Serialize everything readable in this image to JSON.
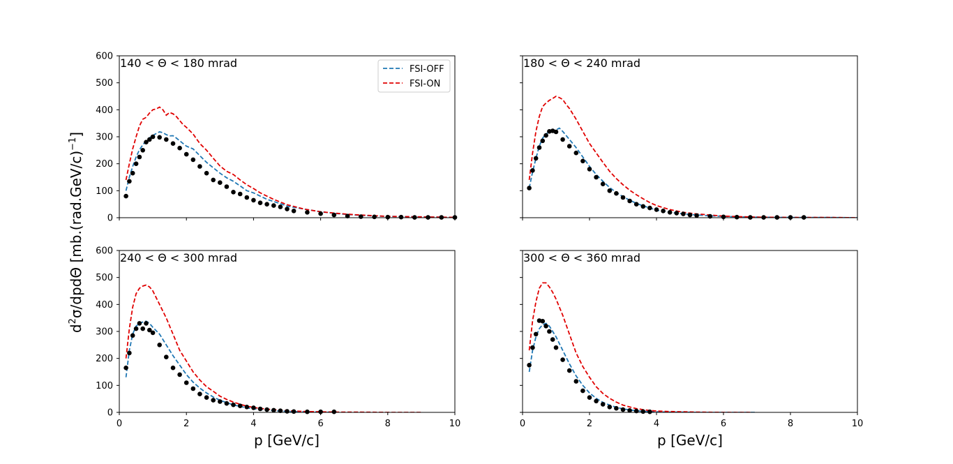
{
  "figure": {
    "xlabel": "p [GeV/c]",
    "ylabel_main": "d",
    "ylabel_sup": "2",
    "ylabel_rest": "σ/dpdΘ [mb.(rad.GeV/c)",
    "ylabel_exp": "−1",
    "ylabel_close": "]"
  },
  "legend": {
    "items": [
      {
        "label": "FSI-OFF",
        "color": "#1f77b4"
      },
      {
        "label": "FSI-ON",
        "color": "#e00000"
      }
    ]
  },
  "chart_data": [
    {
      "type": "line+scatter",
      "title": "140 < Θ < 180 mrad",
      "xlim": [
        0,
        10
      ],
      "ylim": [
        0,
        600
      ],
      "xticks": [
        0,
        2,
        4,
        6,
        8,
        10
      ],
      "yticks": [
        0,
        100,
        200,
        300,
        400,
        500,
        600
      ],
      "series": [
        {
          "name": "FSI-OFF",
          "color": "#1f77b4",
          "style": "dashed",
          "x": [
            0.2,
            0.3,
            0.4,
            0.5,
            0.6,
            0.7,
            0.8,
            0.9,
            1.0,
            1.1,
            1.2,
            1.3,
            1.4,
            1.5,
            1.6,
            1.7,
            1.8,
            1.9,
            2.0,
            2.2,
            2.4,
            2.6,
            2.8,
            3.0,
            3.2,
            3.4,
            3.6,
            3.8,
            4.0,
            4.2,
            4.4,
            4.6,
            4.8,
            5.0,
            5.5,
            6.0,
            6.5,
            7.0,
            7.5,
            8.0,
            8.5,
            9.0,
            9.5,
            10.0
          ],
          "y": [
            100,
            150,
            190,
            225,
            252,
            270,
            285,
            296,
            305,
            312,
            318,
            315,
            308,
            303,
            304,
            295,
            285,
            275,
            265,
            255,
            230,
            205,
            185,
            165,
            148,
            135,
            118,
            100,
            92,
            80,
            68,
            60,
            52,
            43,
            32,
            22,
            15,
            10,
            7,
            5,
            4,
            3,
            2,
            1
          ]
        },
        {
          "name": "FSI-ON",
          "color": "#e00000",
          "style": "dashed",
          "x": [
            0.2,
            0.3,
            0.4,
            0.5,
            0.6,
            0.7,
            0.8,
            0.9,
            1.0,
            1.1,
            1.2,
            1.3,
            1.4,
            1.5,
            1.6,
            1.7,
            1.8,
            1.9,
            2.0,
            2.2,
            2.4,
            2.6,
            2.8,
            3.0,
            3.2,
            3.4,
            3.6,
            3.8,
            4.0,
            4.2,
            4.4,
            4.6,
            4.8,
            5.0,
            5.5,
            6.0,
            6.5,
            7.0,
            7.5,
            8.0,
            8.5,
            9.0,
            9.5,
            10.0
          ],
          "y": [
            140,
            200,
            255,
            300,
            340,
            365,
            372,
            388,
            400,
            403,
            410,
            400,
            380,
            390,
            385,
            375,
            360,
            345,
            335,
            310,
            275,
            250,
            220,
            192,
            172,
            160,
            140,
            122,
            108,
            92,
            80,
            68,
            58,
            48,
            32,
            22,
            16,
            11,
            8,
            5,
            4,
            3,
            2,
            1
          ]
        },
        {
          "name": "data",
          "color": "#000000",
          "style": "points",
          "x": [
            0.2,
            0.3,
            0.4,
            0.5,
            0.6,
            0.7,
            0.8,
            0.9,
            1.0,
            1.2,
            1.4,
            1.6,
            1.8,
            2.0,
            2.2,
            2.4,
            2.6,
            2.8,
            3.0,
            3.2,
            3.4,
            3.6,
            3.8,
            4.0,
            4.2,
            4.4,
            4.6,
            4.8,
            5.0,
            5.2,
            5.6,
            6.0,
            6.4,
            6.8,
            7.2,
            7.6,
            8.0,
            8.4,
            8.8,
            9.2,
            9.6,
            10.0
          ],
          "y": [
            80,
            135,
            165,
            200,
            225,
            250,
            280,
            290,
            300,
            298,
            290,
            275,
            258,
            235,
            215,
            190,
            165,
            140,
            130,
            115,
            95,
            88,
            75,
            65,
            55,
            50,
            45,
            40,
            32,
            25,
            20,
            15,
            10,
            6,
            4,
            3,
            2,
            2,
            1,
            1,
            1,
            1
          ]
        }
      ]
    },
    {
      "type": "line+scatter",
      "title": "180 < Θ < 240 mrad",
      "xlim": [
        0,
        10
      ],
      "ylim": [
        0,
        600
      ],
      "xticks": [
        0,
        2,
        4,
        6,
        8,
        10
      ],
      "yticks": [
        0,
        100,
        200,
        300,
        400,
        500,
        600
      ],
      "series": [
        {
          "name": "FSI-OFF",
          "color": "#1f77b4",
          "style": "dashed",
          "x": [
            0.2,
            0.3,
            0.4,
            0.5,
            0.6,
            0.7,
            0.8,
            0.9,
            1.0,
            1.1,
            1.2,
            1.3,
            1.4,
            1.6,
            1.8,
            2.0,
            2.2,
            2.4,
            2.6,
            2.8,
            3.0,
            3.2,
            3.4,
            3.6,
            3.8,
            4.0,
            4.4,
            4.8,
            5.2,
            5.6,
            6.0,
            6.5,
            7.0,
            8.0,
            9.0,
            10.0
          ],
          "y": [
            110,
            170,
            220,
            265,
            295,
            310,
            318,
            322,
            325,
            332,
            320,
            305,
            290,
            260,
            225,
            190,
            160,
            135,
            112,
            93,
            78,
            65,
            53,
            44,
            36,
            28,
            20,
            14,
            10,
            7,
            5,
            3,
            2,
            1,
            1,
            0
          ]
        },
        {
          "name": "FSI-ON",
          "color": "#e00000",
          "style": "dashed",
          "x": [
            0.2,
            0.3,
            0.4,
            0.5,
            0.6,
            0.7,
            0.8,
            0.9,
            1.0,
            1.1,
            1.2,
            1.3,
            1.4,
            1.6,
            1.8,
            2.0,
            2.2,
            2.4,
            2.6,
            2.8,
            3.0,
            3.2,
            3.4,
            3.6,
            3.8,
            4.0,
            4.4,
            4.8,
            5.2,
            5.6,
            6.0,
            6.5,
            7.0,
            8.0,
            9.0,
            10.0
          ],
          "y": [
            140,
            240,
            320,
            375,
            412,
            425,
            435,
            442,
            450,
            445,
            438,
            420,
            405,
            365,
            320,
            275,
            240,
            205,
            172,
            145,
            122,
            102,
            85,
            70,
            56,
            45,
            30,
            20,
            14,
            10,
            6,
            4,
            2,
            1,
            1,
            0
          ]
        },
        {
          "name": "data",
          "color": "#000000",
          "style": "points",
          "x": [
            0.2,
            0.3,
            0.4,
            0.5,
            0.6,
            0.7,
            0.8,
            0.9,
            1.0,
            1.2,
            1.4,
            1.6,
            1.8,
            2.0,
            2.2,
            2.4,
            2.6,
            2.8,
            3.0,
            3.2,
            3.4,
            3.6,
            3.8,
            4.0,
            4.2,
            4.4,
            4.6,
            4.8,
            5.0,
            5.2,
            5.6,
            6.0,
            6.4,
            6.8,
            7.2,
            7.6,
            8.0,
            8.4
          ],
          "y": [
            110,
            175,
            220,
            260,
            285,
            305,
            320,
            322,
            318,
            290,
            265,
            240,
            210,
            180,
            150,
            125,
            100,
            90,
            75,
            62,
            50,
            42,
            36,
            30,
            25,
            20,
            17,
            14,
            10,
            8,
            5,
            3,
            2,
            1,
            1,
            1,
            1,
            1
          ]
        }
      ]
    },
    {
      "type": "line+scatter",
      "title": "240 < Θ < 300 mrad",
      "xlim": [
        0,
        10
      ],
      "ylim": [
        0,
        600
      ],
      "xticks": [
        0,
        2,
        4,
        6,
        8,
        10
      ],
      "yticks": [
        0,
        100,
        200,
        300,
        400,
        500,
        600
      ],
      "series": [
        {
          "name": "FSI-OFF",
          "color": "#1f77b4",
          "style": "dashed",
          "x": [
            0.2,
            0.3,
            0.4,
            0.5,
            0.6,
            0.7,
            0.8,
            0.9,
            1.0,
            1.2,
            1.4,
            1.6,
            1.8,
            2.0,
            2.2,
            2.4,
            2.6,
            2.8,
            3.0,
            3.2,
            3.4,
            3.6,
            3.8,
            4.0,
            4.4,
            4.8,
            5.2,
            5.6,
            6.0,
            6.4
          ],
          "y": [
            130,
            230,
            290,
            320,
            330,
            335,
            338,
            330,
            315,
            290,
            250,
            210,
            175,
            140,
            112,
            90,
            72,
            57,
            45,
            36,
            28,
            22,
            17,
            13,
            8,
            5,
            3,
            2,
            1,
            1
          ]
        },
        {
          "name": "FSI-ON",
          "color": "#e00000",
          "style": "dashed",
          "x": [
            0.2,
            0.3,
            0.4,
            0.5,
            0.6,
            0.7,
            0.8,
            0.9,
            1.0,
            1.2,
            1.4,
            1.6,
            1.8,
            2.0,
            2.2,
            2.4,
            2.6,
            2.8,
            3.0,
            3.2,
            3.4,
            3.6,
            3.8,
            4.0,
            4.4,
            4.8,
            5.2,
            5.6,
            6.0,
            6.5,
            7.0,
            8.0,
            9.0
          ],
          "y": [
            200,
            310,
            390,
            440,
            460,
            468,
            472,
            465,
            450,
            400,
            350,
            290,
            230,
            190,
            150,
            120,
            95,
            78,
            60,
            48,
            38,
            30,
            23,
            18,
            12,
            8,
            5,
            3,
            2,
            1,
            1,
            0,
            0
          ]
        },
        {
          "name": "data",
          "color": "#000000",
          "style": "points",
          "x": [
            0.2,
            0.3,
            0.4,
            0.5,
            0.6,
            0.7,
            0.8,
            0.9,
            1.0,
            1.2,
            1.4,
            1.6,
            1.8,
            2.0,
            2.2,
            2.4,
            2.6,
            2.8,
            3.0,
            3.2,
            3.4,
            3.6,
            3.8,
            4.0,
            4.2,
            4.4,
            4.6,
            4.8,
            5.0,
            5.2,
            5.6,
            6.0,
            6.4
          ],
          "y": [
            165,
            220,
            285,
            310,
            330,
            310,
            330,
            305,
            295,
            250,
            205,
            165,
            140,
            110,
            88,
            68,
            55,
            45,
            40,
            33,
            28,
            24,
            20,
            17,
            13,
            10,
            8,
            6,
            4,
            3,
            2,
            2,
            2
          ]
        }
      ]
    },
    {
      "type": "line+scatter",
      "title": "300 < Θ < 360 mrad",
      "xlim": [
        0,
        10
      ],
      "ylim": [
        0,
        600
      ],
      "xticks": [
        0,
        2,
        4,
        6,
        8,
        10
      ],
      "yticks": [
        0,
        100,
        200,
        300,
        400,
        500,
        600
      ],
      "series": [
        {
          "name": "FSI-OFF",
          "color": "#1f77b4",
          "style": "dashed",
          "x": [
            0.2,
            0.3,
            0.4,
            0.5,
            0.6,
            0.7,
            0.8,
            0.9,
            1.0,
            1.2,
            1.4,
            1.6,
            1.8,
            2.0,
            2.2,
            2.4,
            2.6,
            2.8,
            3.0,
            3.2,
            3.4,
            3.6,
            3.8,
            4.0,
            4.4,
            4.8,
            5.2,
            6.0,
            7.0
          ],
          "y": [
            150,
            230,
            280,
            310,
            325,
            330,
            320,
            300,
            280,
            230,
            180,
            135,
            100,
            72,
            52,
            37,
            27,
            19,
            13,
            9,
            6,
            4,
            3,
            2,
            1,
            1,
            0,
            0,
            0
          ]
        },
        {
          "name": "FSI-ON",
          "color": "#e00000",
          "style": "dashed",
          "x": [
            0.2,
            0.3,
            0.4,
            0.5,
            0.6,
            0.7,
            0.8,
            0.9,
            1.0,
            1.2,
            1.4,
            1.6,
            1.8,
            2.0,
            2.2,
            2.4,
            2.6,
            2.8,
            3.0,
            3.2,
            3.4,
            3.6,
            3.8,
            4.0,
            4.4,
            4.8,
            5.2,
            6.0,
            6.8
          ],
          "y": [
            230,
            340,
            410,
            460,
            480,
            480,
            465,
            445,
            420,
            360,
            290,
            220,
            170,
            130,
            95,
            70,
            52,
            38,
            27,
            20,
            14,
            10,
            7,
            5,
            3,
            2,
            1,
            0,
            0
          ]
        },
        {
          "name": "data",
          "color": "#000000",
          "style": "points",
          "x": [
            0.2,
            0.3,
            0.4,
            0.5,
            0.6,
            0.7,
            0.8,
            0.9,
            1.0,
            1.2,
            1.4,
            1.6,
            1.8,
            2.0,
            2.2,
            2.4,
            2.6,
            2.8,
            3.0,
            3.2,
            3.4,
            3.6,
            3.8
          ],
          "y": [
            175,
            240,
            290,
            340,
            338,
            320,
            300,
            270,
            240,
            195,
            155,
            115,
            80,
            55,
            42,
            30,
            20,
            15,
            10,
            7,
            5,
            3,
            2
          ]
        }
      ]
    }
  ]
}
